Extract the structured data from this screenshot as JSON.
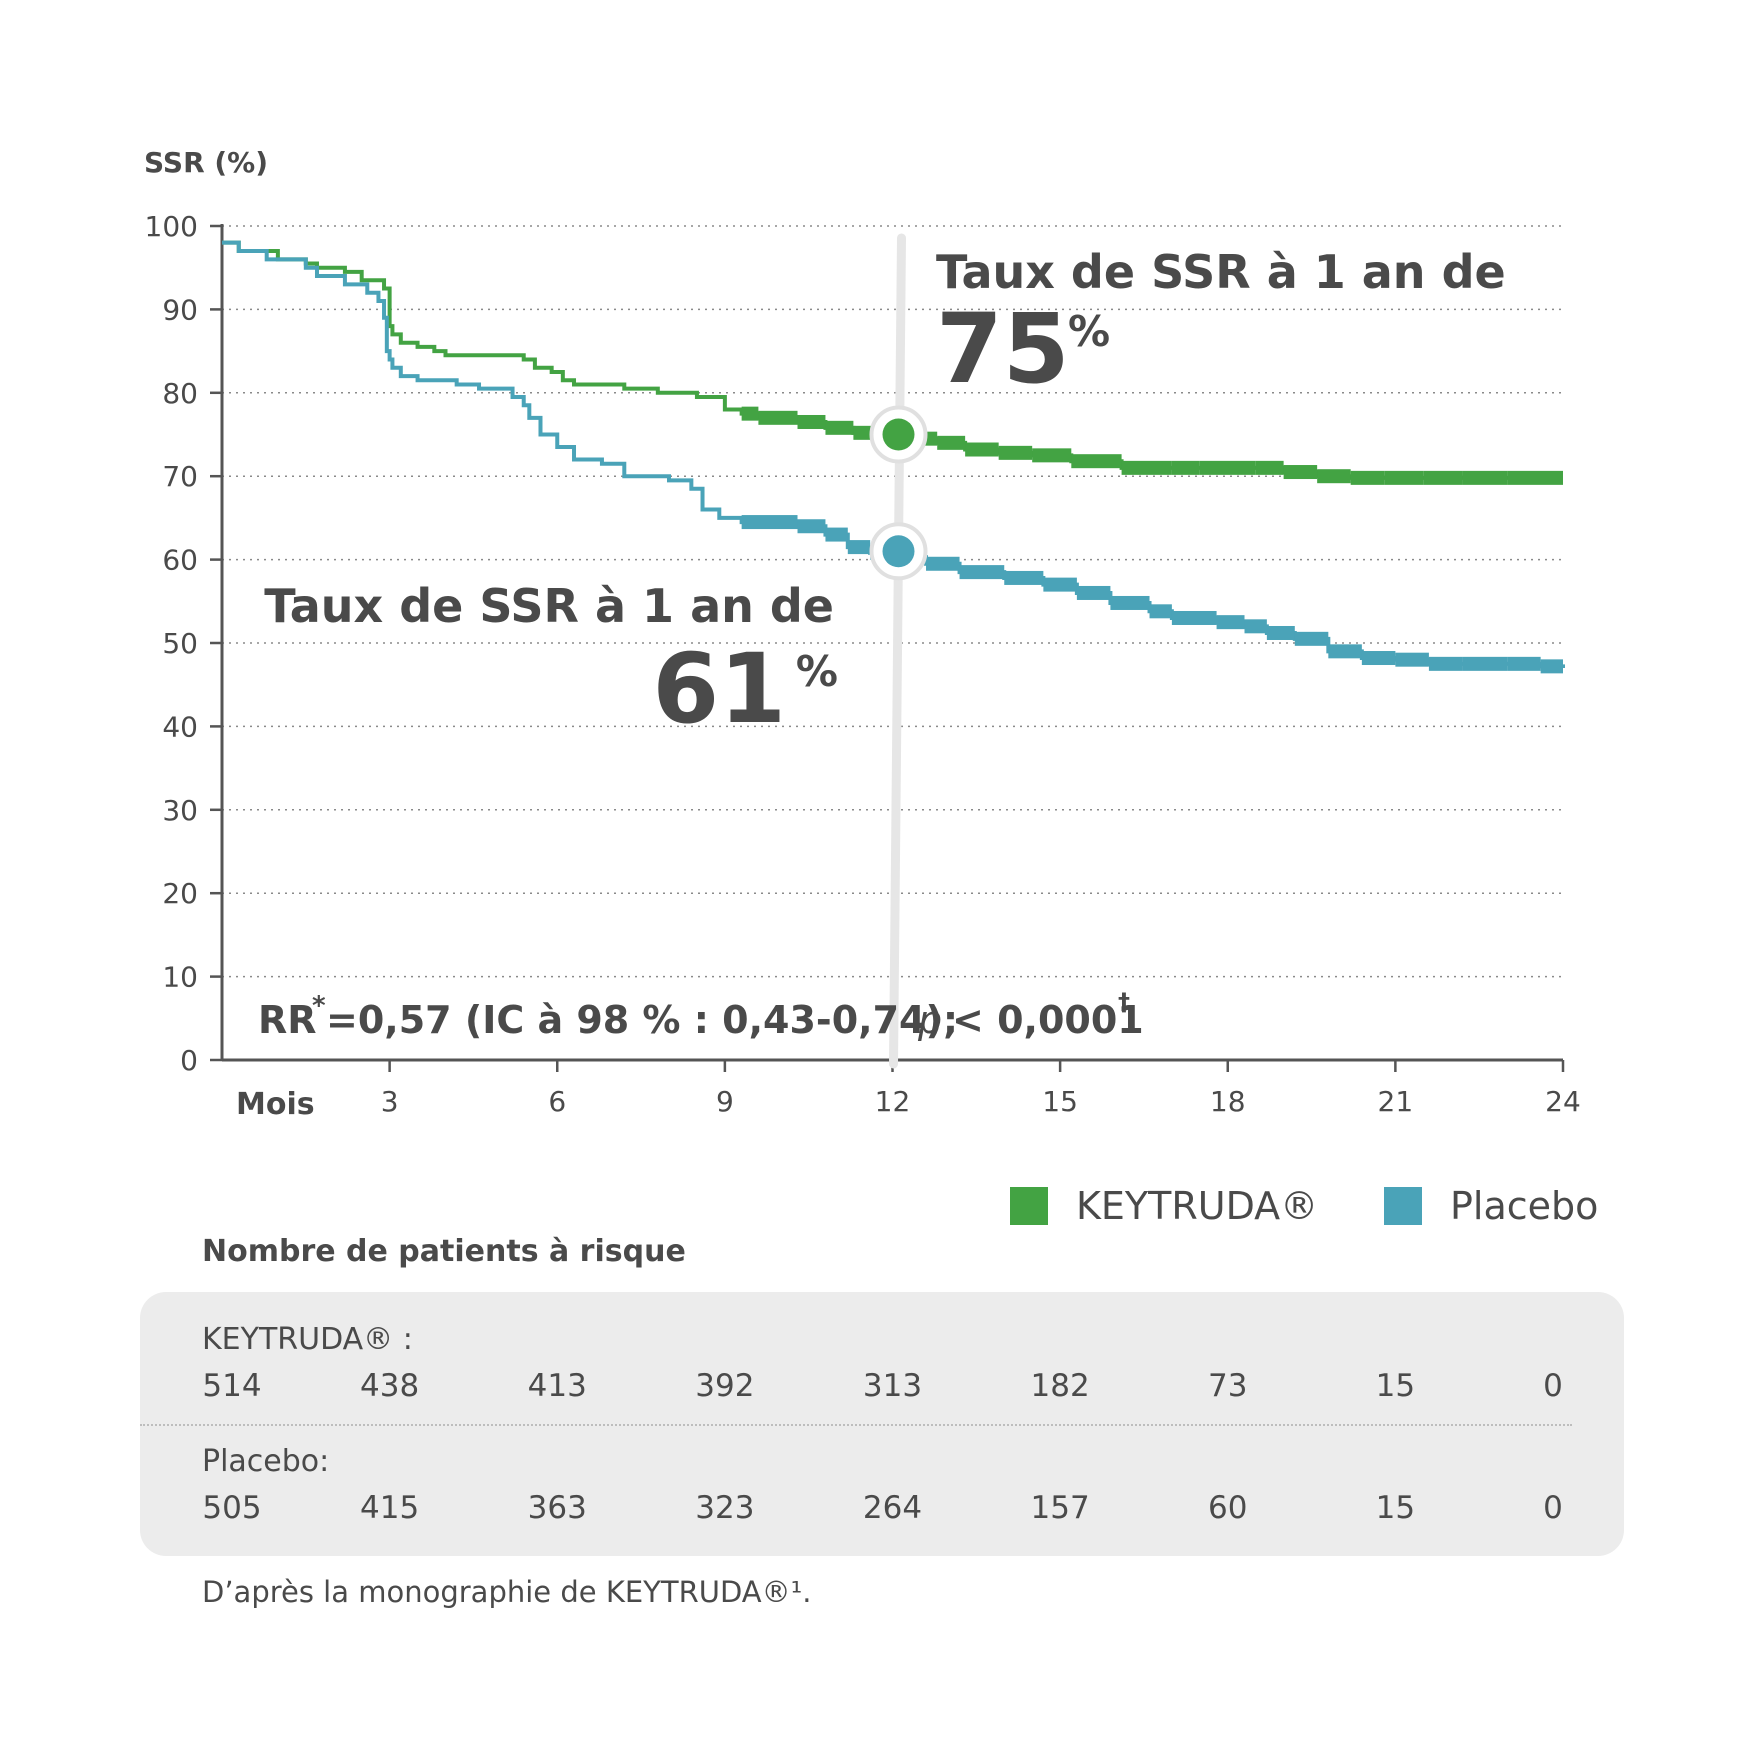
{
  "chart_data": {
    "type": "line",
    "ylabel": "SSR (%)",
    "xlabel": "Mois",
    "ylim": [
      0,
      100
    ],
    "xlim": [
      0,
      24
    ],
    "yticks": [
      0,
      10,
      20,
      30,
      40,
      50,
      60,
      70,
      80,
      90,
      100
    ],
    "xticks": [
      3,
      6,
      9,
      12,
      15,
      18,
      21,
      24
    ],
    "grid": "horizontal dotted",
    "series": [
      {
        "name": "KEYTRUDA®",
        "color": "#43a343",
        "points": [
          [
            0,
            98
          ],
          [
            0.3,
            97
          ],
          [
            1,
            96
          ],
          [
            1.5,
            95.5
          ],
          [
            1.7,
            95
          ],
          [
            2.2,
            94.5
          ],
          [
            2.5,
            93.5
          ],
          [
            2.9,
            92.5
          ],
          [
            3.0,
            88
          ],
          [
            3.05,
            87
          ],
          [
            3.2,
            86
          ],
          [
            3.5,
            85.5
          ],
          [
            3.8,
            85
          ],
          [
            4.0,
            84.5
          ],
          [
            5.0,
            84.5
          ],
          [
            5.4,
            84
          ],
          [
            5.6,
            83
          ],
          [
            5.9,
            82.5
          ],
          [
            6.1,
            81.5
          ],
          [
            6.3,
            81
          ],
          [
            7.0,
            81
          ],
          [
            7.2,
            80.5
          ],
          [
            7.8,
            80
          ],
          [
            8.5,
            79.5
          ],
          [
            9.0,
            78
          ],
          [
            9.3,
            77.5
          ],
          [
            9.6,
            77
          ],
          [
            10.3,
            76.5
          ],
          [
            10.8,
            75.8
          ],
          [
            11.3,
            75.2
          ],
          [
            11.8,
            74.8
          ],
          [
            12.3,
            74.5
          ],
          [
            12.8,
            74
          ],
          [
            13.3,
            73.2
          ],
          [
            13.9,
            72.8
          ],
          [
            14.5,
            72.5
          ],
          [
            15.2,
            71.8
          ],
          [
            16.1,
            71
          ],
          [
            17.0,
            71
          ],
          [
            17.5,
            71
          ],
          [
            18.5,
            71
          ],
          [
            19.0,
            70.5
          ],
          [
            19.6,
            70
          ],
          [
            20.2,
            69.8
          ],
          [
            20.8,
            69.8
          ],
          [
            21.5,
            69.8
          ],
          [
            22.2,
            69.8
          ],
          [
            23.0,
            69.8
          ],
          [
            24.0,
            69.8
          ]
        ]
      },
      {
        "name": "Placebo",
        "color": "#4aa3b8",
        "points": [
          [
            0,
            98
          ],
          [
            0.3,
            97
          ],
          [
            0.8,
            96
          ],
          [
            1.5,
            95
          ],
          [
            1.7,
            94
          ],
          [
            2.2,
            93
          ],
          [
            2.6,
            92
          ],
          [
            2.8,
            91
          ],
          [
            2.9,
            89
          ],
          [
            2.95,
            85
          ],
          [
            3.0,
            84
          ],
          [
            3.05,
            83
          ],
          [
            3.2,
            82
          ],
          [
            3.5,
            81.5
          ],
          [
            4.2,
            81
          ],
          [
            4.6,
            80.5
          ],
          [
            5.2,
            79.5
          ],
          [
            5.4,
            78.5
          ],
          [
            5.5,
            77
          ],
          [
            5.7,
            75
          ],
          [
            6.0,
            73.5
          ],
          [
            6.3,
            72
          ],
          [
            6.8,
            71.5
          ],
          [
            7.2,
            70
          ],
          [
            8.0,
            69.5
          ],
          [
            8.4,
            68.5
          ],
          [
            8.6,
            66
          ],
          [
            8.9,
            65
          ],
          [
            9.3,
            64.5
          ],
          [
            10.3,
            64
          ],
          [
            10.8,
            63
          ],
          [
            11.2,
            61.5
          ],
          [
            11.6,
            60.8
          ],
          [
            12.0,
            60.3
          ],
          [
            12.6,
            59.5
          ],
          [
            13.2,
            58.5
          ],
          [
            14.0,
            57.8
          ],
          [
            14.7,
            57
          ],
          [
            15.3,
            56
          ],
          [
            15.9,
            54.8
          ],
          [
            16.6,
            53.8
          ],
          [
            17.0,
            53
          ],
          [
            17.8,
            52.5
          ],
          [
            18.3,
            52
          ],
          [
            18.7,
            51.2
          ],
          [
            19.2,
            50.5
          ],
          [
            19.8,
            49
          ],
          [
            20.4,
            48.2
          ],
          [
            21.0,
            48
          ],
          [
            21.6,
            47.5
          ],
          [
            22.2,
            47.5
          ],
          [
            23.0,
            47.5
          ],
          [
            23.6,
            47.2
          ],
          [
            24.0,
            47
          ]
        ]
      }
    ],
    "markers": [
      {
        "series": "KEYTRUDA®",
        "x": 12,
        "y": 75
      },
      {
        "series": "Placebo",
        "x": 12,
        "y": 61
      }
    ],
    "annotations": {
      "keytruda_label": "Taux de SSR à 1 an de",
      "keytruda_value": "75",
      "keytruda_unit": "%",
      "placebo_label": "Taux de SSR à 1 an de",
      "placebo_value": "61",
      "placebo_unit": "%",
      "hr_prefix": "RR",
      "hr_star": "*",
      "hr_text": "=0,57 (IC à 98 % : 0,43-0,74);",
      "p_symbol": "p",
      "p_text": "< 0,0001",
      "p_dagger": "†"
    }
  },
  "legend": [
    {
      "label": "KEYTRUDA®",
      "color": "#43a343"
    },
    {
      "label": "Placebo",
      "color": "#4aa3b8"
    }
  ],
  "risk_table": {
    "title": "Nombre de patients à risque",
    "rows": [
      {
        "name": "KEYTRUDA® :",
        "values": [
          "514",
          "438",
          "413",
          "392",
          "313",
          "182",
          "73",
          "15",
          "0"
        ]
      },
      {
        "name": "Placebo:",
        "values": [
          "505",
          "415",
          "363",
          "323",
          "264",
          "157",
          "60",
          "15",
          "0"
        ]
      }
    ]
  },
  "footnote": "D’après la monographie de KEYTRUDA®¹."
}
